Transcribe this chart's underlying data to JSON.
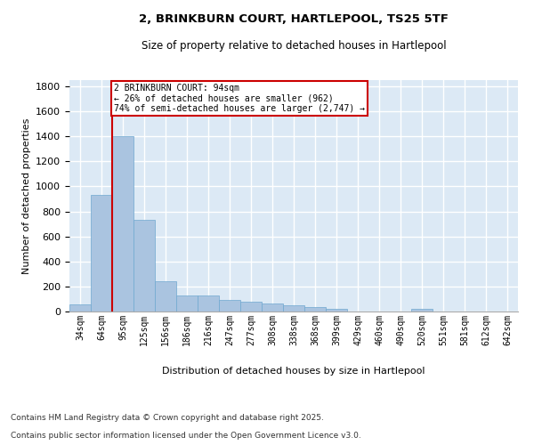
{
  "title_line1": "2, BRINKBURN COURT, HARTLEPOOL, TS25 5TF",
  "title_line2": "Size of property relative to detached houses in Hartlepool",
  "xlabel": "Distribution of detached houses by size in Hartlepool",
  "ylabel": "Number of detached properties",
  "footer_line1": "Contains HM Land Registry data © Crown copyright and database right 2025.",
  "footer_line2": "Contains public sector information licensed under the Open Government Licence v3.0.",
  "bar_labels": [
    "34sqm",
    "64sqm",
    "95sqm",
    "125sqm",
    "156sqm",
    "186sqm",
    "216sqm",
    "247sqm",
    "277sqm",
    "308sqm",
    "338sqm",
    "368sqm",
    "399sqm",
    "429sqm",
    "460sqm",
    "490sqm",
    "520sqm",
    "551sqm",
    "581sqm",
    "612sqm",
    "642sqm"
  ],
  "bar_values": [
    55,
    930,
    1400,
    730,
    245,
    130,
    130,
    90,
    80,
    65,
    50,
    35,
    20,
    0,
    0,
    0,
    20,
    0,
    0,
    0,
    0
  ],
  "bar_color": "#aac4e0",
  "bar_edge_color": "#6fa8d0",
  "background_color": "#dce9f5",
  "grid_color": "#ffffff",
  "vline_color": "#cc0000",
  "annotation_text": "2 BRINKBURN COURT: 94sqm\n← 26% of detached houses are smaller (962)\n74% of semi-detached houses are larger (2,747) →",
  "annotation_box_color": "#ffffff",
  "annotation_box_edge_color": "#cc0000",
  "ylim": [
    0,
    1850
  ],
  "yticks": [
    0,
    200,
    400,
    600,
    800,
    1000,
    1200,
    1400,
    1600,
    1800
  ]
}
